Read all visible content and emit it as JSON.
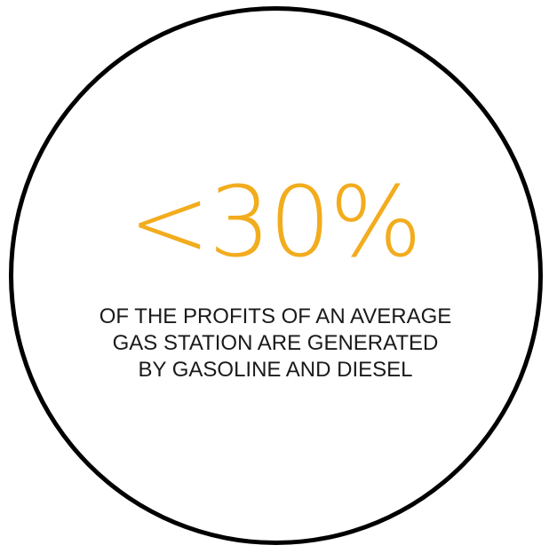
{
  "stat": {
    "value": "<30%",
    "color": "#f2ac1d"
  },
  "caption": {
    "lines": [
      "OF THE PROFITS OF AN AVERAGE",
      "GAS STATION ARE GENERATED",
      "BY GASOLINE AND DIESEL"
    ]
  },
  "border_color": "#000000"
}
